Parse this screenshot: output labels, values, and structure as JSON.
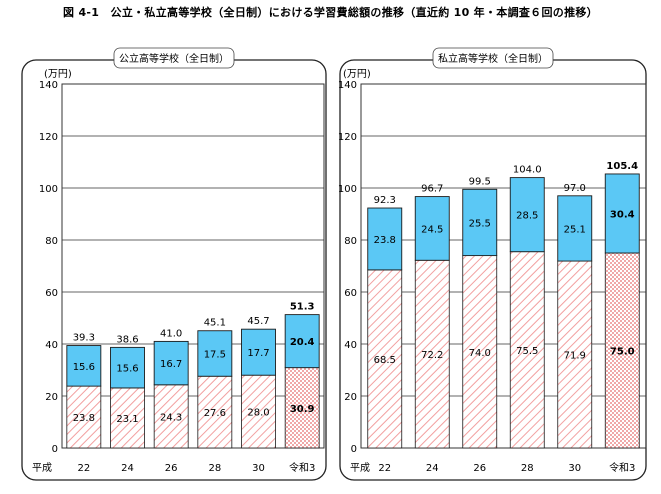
{
  "figure_title": "図 4-1　公立・私立高等学校（全日制）における学習費総額の推移（直近約 10 年・本調査６回の推移）",
  "colors": {
    "top": "#5bc8f5",
    "bottom_hatch": "#f2a0a0",
    "outline": "#1a1a1a"
  },
  "chart_data": [
    {
      "type": "bar",
      "stacked": true,
      "title": "公立高等学校（全日制）",
      "ylabel": "(万円)",
      "ylim": [
        0,
        140
      ],
      "yticks": [
        0,
        20,
        40,
        60,
        80,
        100,
        120,
        140
      ],
      "grid": true,
      "era_label": "平成",
      "categories": [
        "22",
        "24",
        "26",
        "28",
        "30",
        "令和3"
      ],
      "series": [
        {
          "values": [
            23.8,
            23.1,
            24.3,
            27.6,
            28.0,
            30.9
          ],
          "labels": [
            "23.8",
            "23.1",
            "24.3",
            "27.6",
            "28.0",
            "30.9"
          ]
        },
        {
          "values": [
            15.6,
            15.6,
            16.7,
            17.5,
            17.7,
            20.4
          ],
          "labels": [
            "15.6",
            "15.6",
            "16.7",
            "17.5",
            "17.7",
            "20.4"
          ]
        }
      ],
      "totals": [
        39.3,
        38.6,
        41.0,
        45.1,
        45.7,
        51.3
      ],
      "total_labels": [
        "39.3",
        "38.6",
        "41.0",
        "45.1",
        "45.7",
        "51.3"
      ]
    },
    {
      "type": "bar",
      "stacked": true,
      "title": "私立高等学校（全日制）",
      "ylabel": "(万円)",
      "ylim": [
        0,
        140
      ],
      "yticks": [
        0,
        20,
        40,
        60,
        80,
        100,
        120,
        140
      ],
      "grid": true,
      "era_label": "平成",
      "categories": [
        "22",
        "24",
        "26",
        "28",
        "30",
        "令和3"
      ],
      "series": [
        {
          "values": [
            68.5,
            72.2,
            74.0,
            75.5,
            71.9,
            75.0
          ],
          "labels": [
            "68.5",
            "72.2",
            "74.0",
            "75.5",
            "71.9",
            "75.0"
          ]
        },
        {
          "values": [
            23.8,
            24.5,
            25.5,
            28.5,
            25.1,
            30.4
          ],
          "labels": [
            "23.8",
            "24.5",
            "25.5",
            "28.5",
            "25.1",
            "30.4"
          ]
        }
      ],
      "totals": [
        92.3,
        96.7,
        99.5,
        104.0,
        97.0,
        105.4
      ],
      "total_labels": [
        "92.3",
        "96.7",
        "99.5",
        "104.0",
        "97.0",
        "105.4"
      ]
    }
  ]
}
